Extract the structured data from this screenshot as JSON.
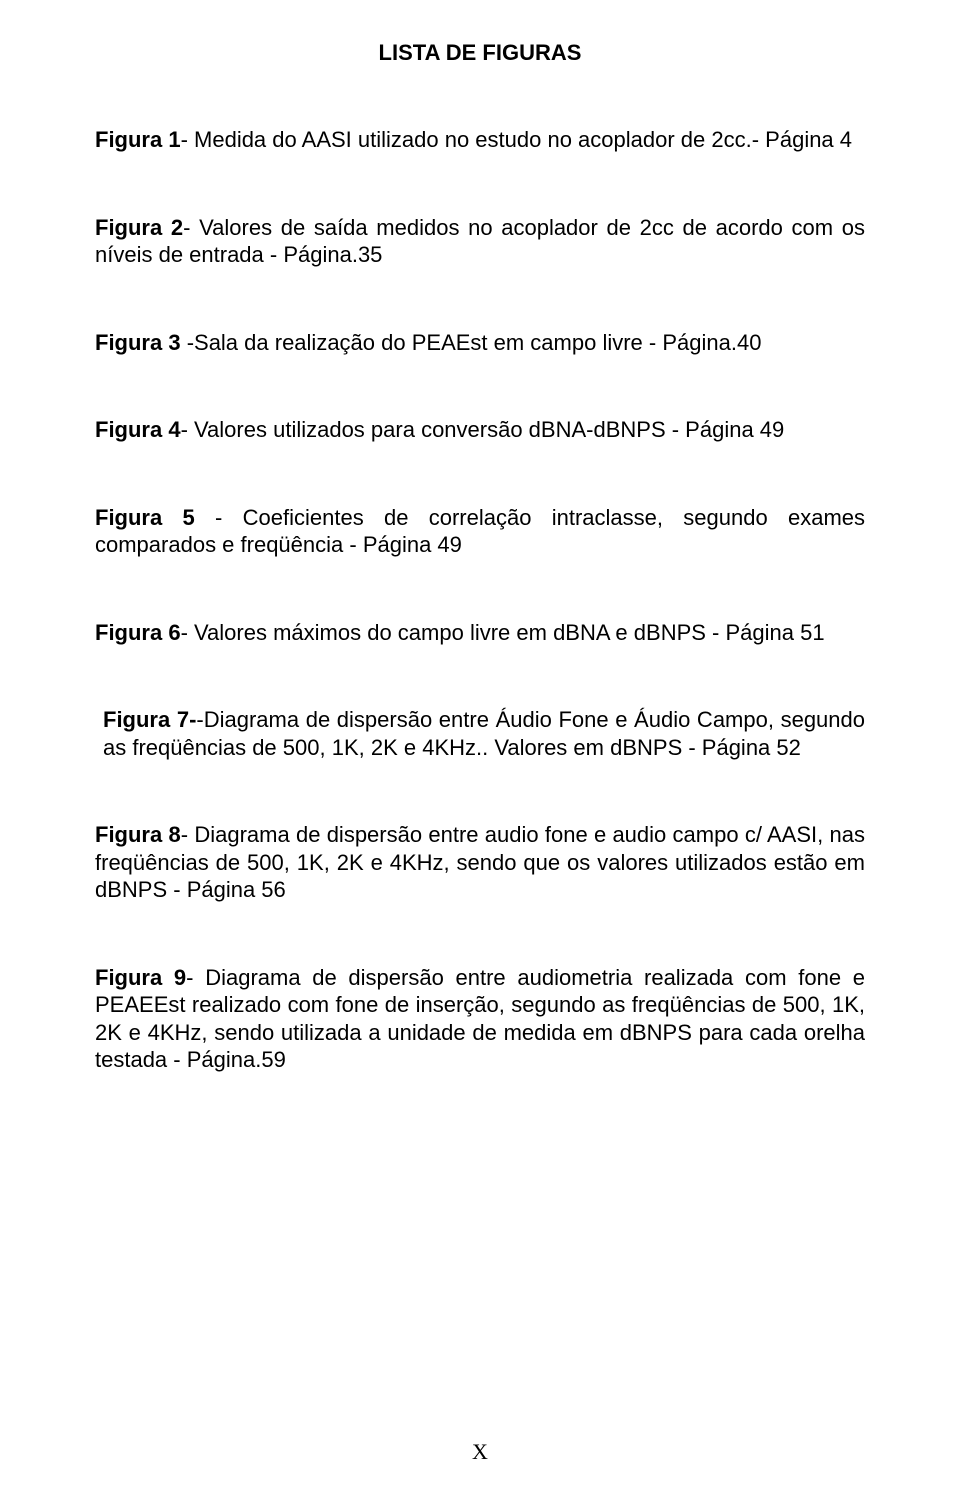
{
  "title": "LISTA DE FIGURAS",
  "entries": [
    {
      "label": "Figura 1",
      "sep": "- ",
      "text": "Medida do AASI utilizado no estudo no acoplador de 2cc.- Página 4"
    },
    {
      "label": "Figura 2",
      "sep": "- ",
      "text": "Valores de saída medidos no acoplador de 2cc de acordo com os níveis de  entrada - Página.35"
    },
    {
      "label": "Figura 3 ",
      "sep": "-",
      "text": "Sala da realização do PEAEst em campo livre - Página.40"
    },
    {
      "label": "Figura 4",
      "sep": "- ",
      "text": "Valores utilizados para conversão dBNA-dBNPS - Página 49"
    },
    {
      "label": "Figura 5 ",
      "sep": "- ",
      "text": "Coeficientes de correlação intraclasse, segundo exames comparados e freqüência - Página 49"
    },
    {
      "label": "Figura 6",
      "sep": "- ",
      "text": "Valores máximos do campo livre em dBNA e dBNPS - Página 51"
    },
    {
      "label": "Figura 7-",
      "sep": "-",
      "text": "Diagrama de dispersão entre Áudio Fone e Áudio Campo, segundo as freqüências de 500, 1K, 2K e 4KHz.. Valores em dBNPS - Página 52",
      "indent": true
    },
    {
      "label": "Figura 8",
      "sep": "- ",
      "text": "Diagrama de dispersão entre audio fone e audio campo c/ AASI, nas freqüências de 500, 1K, 2K e 4KHz, sendo que os valores utilizados estão  em dBNPS - Página 56"
    },
    {
      "label": "Figura 9",
      "sep": "- ",
      "text": "Diagrama de dispersão entre audiometria realizada com fone e PEAEEst realizado com fone de inserção, segundo as freqüências de 500, 1K, 2K e 4KHz, sendo utilizada a unidade de medida em dBNPS para cada orelha testada - Página.59"
    }
  ],
  "pageNumber": "X"
}
